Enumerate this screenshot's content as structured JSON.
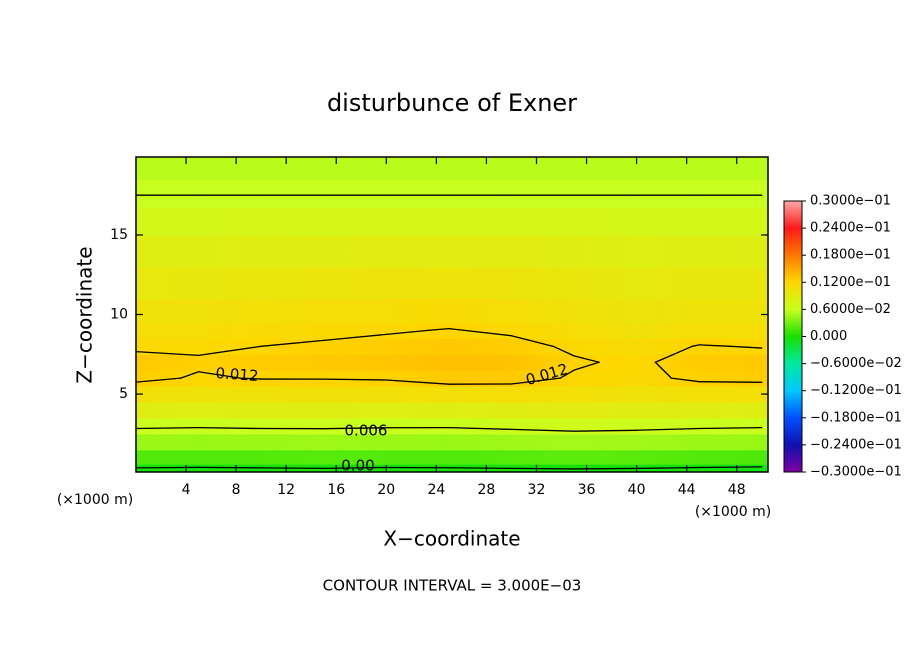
{
  "chart_data": {
    "type": "contour",
    "title": "disturbunce of Exner",
    "x_label": "X−coordinate",
    "y_label": "Z−coordinate",
    "x_unit_label": "(×1000 m)",
    "x_unit_label_right": "(×1000 m)",
    "footnote": "CONTOUR INTERVAL = 3.000E−03",
    "xlim": [
      0,
      50.5
    ],
    "ylim": [
      0.1,
      19.9
    ],
    "xticks": [
      4,
      8,
      12,
      16,
      20,
      24,
      28,
      32,
      36,
      40,
      44,
      48
    ],
    "yticks": [
      5,
      10,
      15
    ],
    "x": [
      0,
      5,
      10,
      15,
      20,
      25,
      30,
      35,
      40,
      45,
      50
    ],
    "y": [
      0.2,
      1,
      2,
      3,
      4,
      5,
      6,
      7,
      8,
      9,
      10,
      12,
      14,
      16,
      17.5,
      19.5
    ],
    "z": [
      [
        -0.0005,
        -0.0006,
        -0.0005,
        -0.0004,
        -0.0006,
        -0.0005,
        -0.0004,
        -0.0003,
        -0.0004,
        -0.0006,
        -0.0007
      ],
      [
        0.002,
        0.0019,
        0.002,
        0.0021,
        0.002,
        0.0019,
        0.0021,
        0.0023,
        0.0022,
        0.002,
        0.0018
      ],
      [
        0.0045,
        0.0044,
        0.0045,
        0.0046,
        0.0045,
        0.0044,
        0.0046,
        0.0048,
        0.0047,
        0.0045,
        0.0044
      ],
      [
        0.0063,
        0.0062,
        0.0063,
        0.0063,
        0.0062,
        0.0062,
        0.0064,
        0.0066,
        0.0065,
        0.0063,
        0.0062
      ],
      [
        0.0085,
        0.0084,
        0.0085,
        0.0085,
        0.0084,
        0.0085,
        0.0087,
        0.0088,
        0.0087,
        0.0086,
        0.0085
      ],
      [
        0.0105,
        0.0103,
        0.0104,
        0.0105,
        0.0105,
        0.0107,
        0.0108,
        0.0106,
        0.0104,
        0.0106,
        0.0106
      ],
      [
        0.0125,
        0.0118,
        0.0121,
        0.0121,
        0.0122,
        0.0128,
        0.0127,
        0.0118,
        0.0115,
        0.0124,
        0.0125
      ],
      [
        0.0128,
        0.0123,
        0.0127,
        0.0128,
        0.013,
        0.0134,
        0.0132,
        0.0122,
        0.0117,
        0.0127,
        0.0128
      ],
      [
        0.0116,
        0.0116,
        0.012,
        0.0123,
        0.0126,
        0.0129,
        0.0126,
        0.0117,
        0.0112,
        0.0121,
        0.0119
      ],
      [
        0.0108,
        0.011,
        0.0113,
        0.0115,
        0.0118,
        0.0121,
        0.0117,
        0.011,
        0.0104,
        0.011,
        0.011
      ],
      [
        0.0102,
        0.0104,
        0.0106,
        0.0108,
        0.011,
        0.0112,
        0.0109,
        0.0104,
        0.0099,
        0.0103,
        0.0103
      ],
      [
        0.0094,
        0.0095,
        0.0097,
        0.0098,
        0.0099,
        0.01,
        0.0099,
        0.0096,
        0.0093,
        0.0095,
        0.0095
      ],
      [
        0.0085,
        0.0085,
        0.0086,
        0.0087,
        0.0088,
        0.0088,
        0.0088,
        0.0086,
        0.0084,
        0.0085,
        0.0085
      ],
      [
        0.0072,
        0.0072,
        0.0073,
        0.0073,
        0.0074,
        0.0074,
        0.0074,
        0.0073,
        0.0072,
        0.0072,
        0.0072
      ],
      [
        0.006,
        0.006,
        0.006,
        0.006,
        0.006,
        0.006,
        0.006,
        0.006,
        0.006,
        0.006,
        0.006
      ],
      [
        0.0055,
        0.0055,
        0.0055,
        0.0055,
        0.0055,
        0.0055,
        0.0055,
        0.0055,
        0.0055,
        0.0055,
        0.0055
      ]
    ],
    "contour_levels": [
      0,
      0.006,
      0.012
    ],
    "contour_labels": [
      "0.012",
      "0.012",
      "0.006",
      "0.00"
    ],
    "colorbar": {
      "ylim": [
        -0.03,
        0.03
      ],
      "ticks": [
        {
          "value": 0.03,
          "label": "0.3000e−01"
        },
        {
          "value": 0.024,
          "label": "0.2400e−01"
        },
        {
          "value": 0.018,
          "label": "0.1800e−01"
        },
        {
          "value": 0.012,
          "label": "0.1200e−01"
        },
        {
          "value": 0.006,
          "label": "0.6000e−02"
        },
        {
          "value": 0,
          "label": "0.000"
        },
        {
          "value": -0.006,
          "label": "−0.6000e−02"
        },
        {
          "value": -0.012,
          "label": "−0.1200e−01"
        },
        {
          "value": -0.018,
          "label": "−0.1800e−01"
        },
        {
          "value": -0.024,
          "label": "−0.2400e−01"
        },
        {
          "value": -0.03,
          "label": "−0.3000e−01"
        }
      ],
      "colors": [
        "#ffa8a8",
        "#ff1a1a",
        "#ff7800",
        "#ffd600",
        "#c8ff1e",
        "#18e000",
        "#00e8a0",
        "#00c8ff",
        "#0050ff",
        "#1010b0",
        "#8000a0"
      ]
    }
  }
}
